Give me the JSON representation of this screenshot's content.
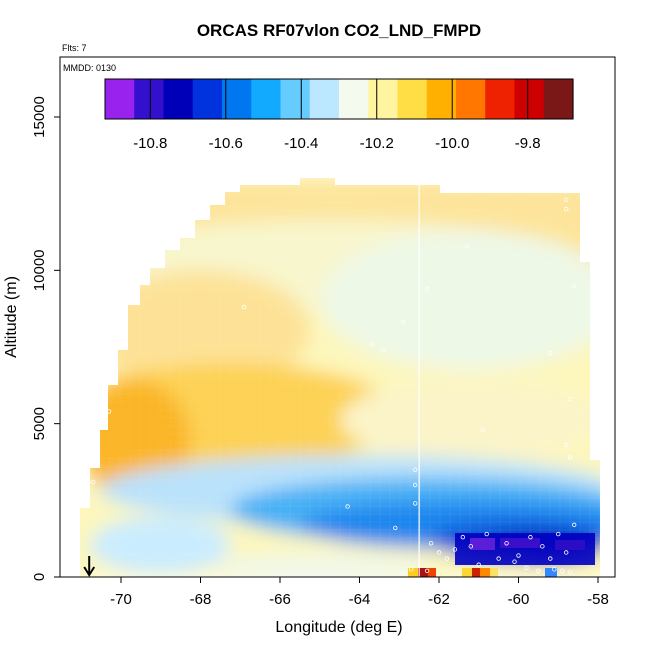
{
  "header": {
    "flights_label": "Flts: 7",
    "date_label": "MMDD: 0130"
  },
  "chart_data": {
    "type": "heatmap",
    "title": "ORCAS RF07vlon CO2_LND_FMPD",
    "xlabel": "Longitude (deg E)",
    "ylabel": "Altitude (m)",
    "xlim": [
      -71.5,
      -57.8
    ],
    "ylim": [
      0,
      16500
    ],
    "x_ticks": [
      -70,
      -68,
      -66,
      -64,
      -62,
      -60,
      -58
    ],
    "x_tick_labels": [
      "-70",
      "-68",
      "-66",
      "-64",
      "-62",
      "-60",
      "-58"
    ],
    "y_ticks": [
      0,
      5000,
      10000,
      15000
    ],
    "y_tick_labels": [
      "0",
      "5000",
      "10000",
      "15000"
    ],
    "colorbar": {
      "range": [
        -10.92,
        -9.68
      ],
      "ticks": [
        -10.8,
        -10.6,
        -10.4,
        -10.2,
        -10.0,
        -9.8
      ],
      "tick_labels": [
        "-10.8",
        "-10.6",
        "-10.4",
        "-10.2",
        "-10.0",
        "-9.8"
      ],
      "colors": [
        "#9922ee",
        "#3311cc",
        "#0000b8",
        "#0033dd",
        "#0077ee",
        "#11aaff",
        "#66ccff",
        "#bbe8ff",
        "#f4faee",
        "#fff4a0",
        "#ffdd44",
        "#ffb000",
        "#ff7700",
        "#ee2200",
        "#cc0000",
        "#7a1818"
      ]
    },
    "field_summary": {
      "upper_troposphere_value_approx": -10.25,
      "mid_level_maximum_value_approx": -10.1,
      "mid_level_maximum_altitude_m": 4500,
      "boundary_layer_minimum_value_approx": -10.75,
      "boundary_layer_minimum_location": [
        -59.5,
        800
      ],
      "surface_hotspot_value_approx": -9.8,
      "surface_hotspot_location": [
        -62.5,
        0
      ]
    },
    "surface_marker_longitude": -70.8,
    "vertical_line_longitude": -62.5
  }
}
